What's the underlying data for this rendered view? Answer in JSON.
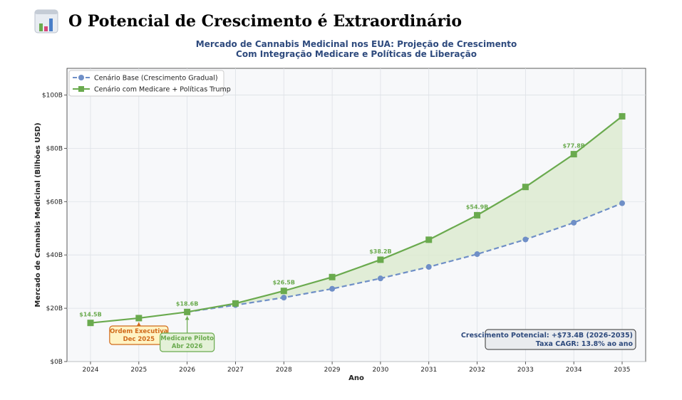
{
  "page": {
    "heading": "O Potencial de Crescimento é Extraordinário",
    "heading_icon": "bar-chart-icon"
  },
  "chart_data": {
    "type": "line",
    "title": "Mercado de Cannabis Medicinal nos EUA: Projeção de Crescimento",
    "subtitle": "Com Integração Medicare e Políticas de Liberação",
    "xlabel": "Ano",
    "ylabel": "Mercado de Cannabis Medicinal (Bilhões USD)",
    "x": [
      2024,
      2025,
      2026,
      2027,
      2028,
      2029,
      2030,
      2031,
      2032,
      2033,
      2034,
      2035
    ],
    "ylim": [
      0,
      110
    ],
    "y_ticks": [
      0,
      20,
      40,
      60,
      80,
      100
    ],
    "y_tick_labels": [
      "$0B",
      "$20B",
      "$40B",
      "$60B",
      "$80B",
      "$100B"
    ],
    "grid": true,
    "legend_position": "top-left",
    "series": [
      {
        "name": "Cenário Base (Crescimento Gradual)",
        "x": [
          2026,
          2027,
          2028,
          2029,
          2030,
          2031,
          2032,
          2033,
          2034,
          2035
        ],
        "values": [
          18.6,
          21.2,
          24.0,
          27.3,
          31.2,
          35.5,
          40.3,
          45.8,
          52.1,
          59.4
        ],
        "color": "#6f8fc7",
        "style": "dashed",
        "marker": "circle"
      },
      {
        "name": "Cenário com Medicare + Políticas Trump",
        "x": [
          2024,
          2025,
          2026,
          2027,
          2028,
          2029,
          2030,
          2031,
          2032,
          2033,
          2034,
          2035
        ],
        "values": [
          14.5,
          16.3,
          18.6,
          21.8,
          26.5,
          31.7,
          38.2,
          45.7,
          54.9,
          65.5,
          77.8,
          92.0
        ],
        "color": "#6aaa4e",
        "style": "solid",
        "marker": "square"
      }
    ],
    "data_labels": [
      {
        "x": 2024,
        "y": 14.5,
        "text": "$14.5B"
      },
      {
        "x": 2026,
        "y": 18.6,
        "text": "$18.6B"
      },
      {
        "x": 2028,
        "y": 26.5,
        "text": "$26.5B"
      },
      {
        "x": 2030,
        "y": 38.2,
        "text": "$38.2B"
      },
      {
        "x": 2032,
        "y": 54.9,
        "text": "$54.9B"
      },
      {
        "x": 2034,
        "y": 77.8,
        "text": "$77.8B"
      }
    ],
    "annotations": [
      {
        "x": 2025,
        "y": 16.3,
        "lines": [
          "Ordem Executiva",
          "Dec 2025"
        ],
        "color": "#d06a1a",
        "fill": "#fff3c4"
      },
      {
        "x": 2026,
        "y": 18.6,
        "lines": [
          "Medicare Piloto",
          "Abr 2026"
        ],
        "color": "#6aaa4e",
        "fill": "#e4f1d8"
      }
    ],
    "info_box": {
      "line1": "Crescimento Potencial: +$73.4B (2026-2035)",
      "line2": "Taxa CAGR: 13.8% ao ano"
    },
    "colors": {
      "title": "#2e4a7d",
      "plot_bg": "#f7f8fa",
      "fill_between": "#d9eacb"
    }
  }
}
